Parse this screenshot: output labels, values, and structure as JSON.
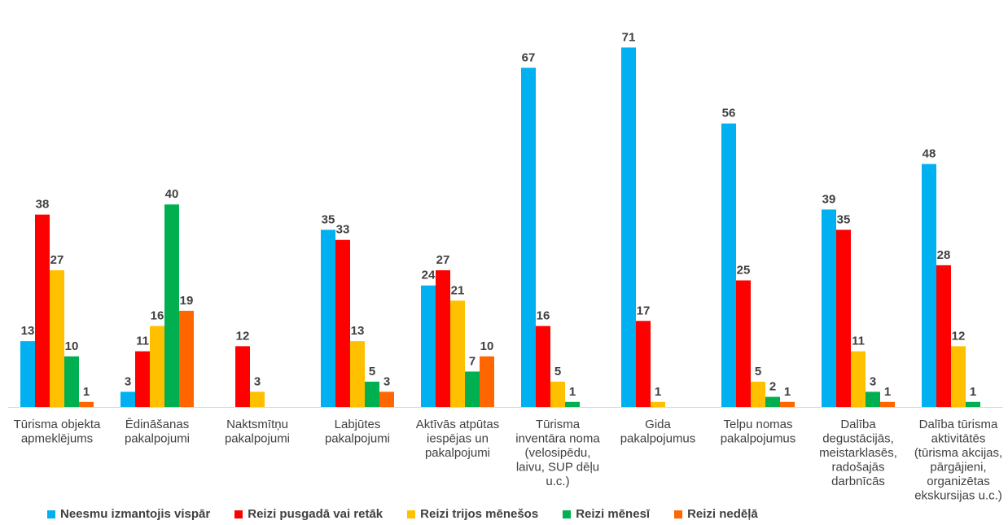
{
  "chart_data": {
    "type": "bar",
    "categories": [
      [
        "Tūrisma objekta",
        "apmeklējums"
      ],
      [
        "Ēdināšanas",
        "pakalpojumi"
      ],
      [
        "Naktsmītņu",
        "pakalpojumi"
      ],
      [
        "Labjūtes",
        "pakalpojumi"
      ],
      [
        "Aktīvās atpūtas",
        "iespējas un",
        "pakalpojumi"
      ],
      [
        "Tūrisma",
        "inventāra noma",
        "(velosipēdu,",
        "laivu, SUP dēļu",
        "u.c.)"
      ],
      [
        "Gida",
        "pakalpojumus"
      ],
      [
        "Telpu nomas",
        "pakalpojumus"
      ],
      [
        "Dalība",
        "degustācijās,",
        "meistarklasēs,",
        "radošajās",
        "darbnīcās"
      ],
      [
        "Dalība tūrisma",
        "aktivitātēs",
        "(tūrisma akcijas,",
        "pārgājieni,",
        "organizētas",
        "ekskursijas u.c.)"
      ]
    ],
    "series": [
      {
        "name": "Neesmu izmantojis vispār",
        "color": "#00B0F0",
        "values": [
          13,
          3,
          null,
          35,
          24,
          67,
          71,
          56,
          39,
          48
        ]
      },
      {
        "name": "Reizi pusgadā vai retāk",
        "color": "#FF0000",
        "values": [
          38,
          11,
          12,
          33,
          27,
          16,
          17,
          25,
          35,
          28
        ]
      },
      {
        "name": "Reizi trijos mēnešos",
        "color": "#FFC000",
        "values": [
          27,
          16,
          3,
          13,
          21,
          5,
          1,
          5,
          11,
          12
        ]
      },
      {
        "name": "Reizi mēnesī",
        "color": "#00B050",
        "values": [
          10,
          40,
          null,
          5,
          7,
          1,
          null,
          2,
          3,
          1
        ]
      },
      {
        "name": "Reizi nedēļā",
        "color": "#FF6600",
        "values": [
          1,
          19,
          null,
          3,
          10,
          null,
          null,
          1,
          1,
          null
        ]
      }
    ],
    "ylim": [
      0,
      80
    ],
    "grid": false,
    "legend_position": "bottom"
  }
}
